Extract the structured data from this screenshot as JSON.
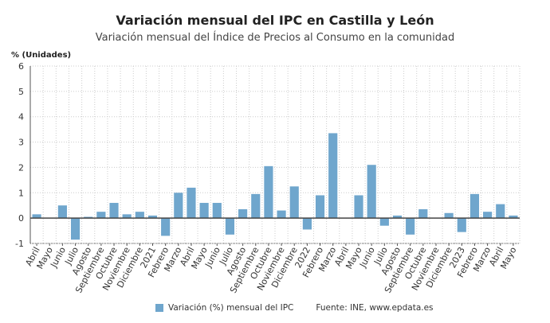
{
  "chart_data": {
    "type": "bar",
    "title": "Variación mensual del IPC en Castilla y León",
    "subtitle": "Variación mensual del Índice de Precios al Consumo en la comunidad",
    "ylabel": "% (Unidades)",
    "xlabel": "",
    "ylim": [
      -1,
      6
    ],
    "yticks": [
      -1,
      0,
      1,
      2,
      3,
      4,
      5,
      6
    ],
    "grid": true,
    "legend_position": "bottom",
    "color": "#6fa6cd",
    "categories": [
      "Abril",
      "Mayo",
      "Junio",
      "Julio",
      "Agosto",
      "Septiembre",
      "Octubre",
      "Noviembre",
      "Diciembre",
      "2021",
      "Febrero",
      "Marzo",
      "Abril",
      "Mayo",
      "Junio",
      "Julio",
      "Agosto",
      "Septiembre",
      "Octubre",
      "Noviembre",
      "Diciembre",
      "2022",
      "Febrero",
      "Marzo",
      "Abril",
      "Mayo",
      "Junio",
      "Julio",
      "Agosto",
      "Septiembre",
      "Octubre",
      "Noviembre",
      "Diciembre",
      "2023",
      "Febrero",
      "Marzo",
      "Abril",
      "Mayo"
    ],
    "series": [
      {
        "name": "Variación (%) mensual del IPC",
        "values": [
          0.15,
          0.0,
          0.5,
          -0.85,
          0.05,
          0.25,
          0.6,
          0.15,
          0.25,
          0.1,
          -0.7,
          1.0,
          1.2,
          0.6,
          0.6,
          -0.65,
          0.35,
          0.95,
          2.05,
          0.3,
          1.25,
          -0.45,
          0.9,
          3.35,
          0.0,
          0.9,
          2.1,
          -0.3,
          0.1,
          -0.65,
          0.35,
          0.0,
          0.2,
          -0.55,
          0.95,
          0.25,
          0.55,
          0.1
        ]
      }
    ],
    "source": "Fuente: INE, www.epdata.es"
  }
}
